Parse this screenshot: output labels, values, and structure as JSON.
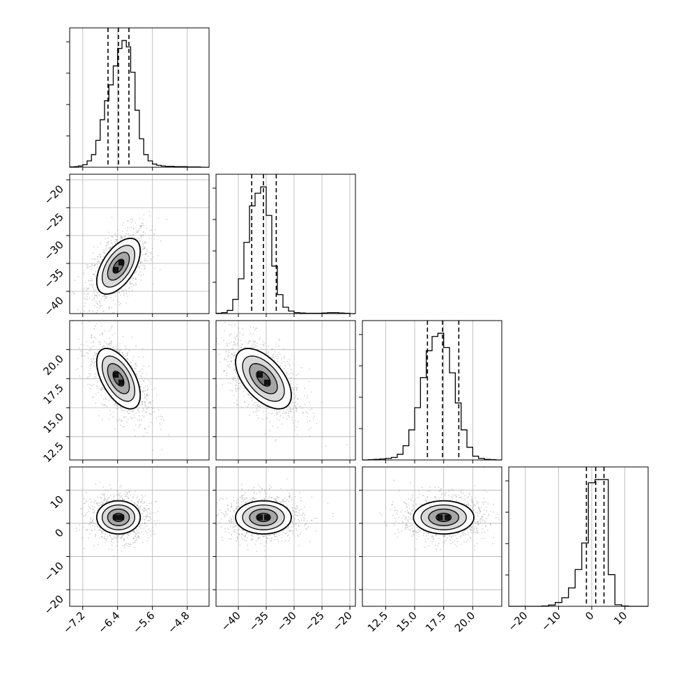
{
  "chart_data": {
    "type": "corner",
    "grid": true,
    "parameters": [
      {
        "range": [
          -7.5,
          -4.3
        ],
        "ticks": [
          "−7.2",
          "−6.4",
          "−5.6",
          "−4.8"
        ],
        "tick_values": [
          -7.2,
          -6.4,
          -5.6,
          -4.8
        ]
      },
      {
        "range": [
          -44,
          -19
        ],
        "ticks": [
          "−40",
          "−35",
          "−30",
          "−25",
          "−20"
        ],
        "tick_values": [
          -40,
          -35,
          -30,
          -25,
          -20
        ]
      },
      {
        "range": [
          10.5,
          22.5
        ],
        "ticks": [
          "12.5",
          "15.0",
          "17.5",
          "20.0"
        ],
        "tick_values": [
          12.5,
          15.0,
          17.5,
          20.0
        ]
      },
      {
        "range": [
          -25,
          17
        ],
        "ticks": [
          "−20",
          "−10",
          "0",
          "10"
        ],
        "tick_values": [
          -20,
          -10,
          0,
          10
        ]
      }
    ],
    "quantiles": [
      [
        -6.62,
        -6.38,
        -6.14
      ],
      [
        -37.6,
        -35.5,
        -33.2
      ],
      [
        16.1,
        17.4,
        18.8
      ],
      [
        -1.6,
        1.2,
        3.7
      ]
    ],
    "histograms": [
      {
        "bin_edges": [
          -7.5,
          -7.4,
          -7.3,
          -7.2,
          -7.1,
          -7.0,
          -6.9,
          -6.8,
          -6.7,
          -6.6,
          -6.5,
          -6.4,
          -6.3,
          -6.2,
          -6.1,
          -6.0,
          -5.9,
          -5.8,
          -5.7,
          -5.6,
          -5.5,
          -5.4,
          -5.3,
          -5.2,
          -5.1,
          -5.0,
          -4.9,
          -4.8,
          -4.7,
          -4.6,
          -4.5,
          -4.4,
          -4.3
        ],
        "counts": [
          1,
          2,
          4,
          8,
          20,
          40,
          85,
          150,
          210,
          260,
          320,
          375,
          400,
          380,
          300,
          180,
          90,
          40,
          20,
          10,
          6,
          4,
          3,
          3,
          2,
          2,
          2,
          1,
          1,
          1,
          0,
          0
        ]
      },
      {
        "bin_edges": [
          -44,
          -43,
          -42,
          -41,
          -40,
          -39,
          -38,
          -37,
          -36,
          -35,
          -34,
          -33,
          -32,
          -31,
          -30,
          -29,
          -28,
          -27,
          -26,
          -25,
          -24,
          -23,
          -22,
          -21,
          -20,
          -19
        ],
        "counts": [
          1,
          3,
          10,
          45,
          110,
          225,
          340,
          380,
          400,
          310,
          150,
          60,
          20,
          8,
          3,
          2,
          1,
          1,
          1,
          2,
          3,
          3,
          2,
          1,
          0
        ]
      },
      {
        "bin_edges": [
          10.5,
          11.0,
          11.5,
          12.0,
          12.5,
          13.0,
          13.5,
          14.0,
          14.5,
          15.0,
          15.5,
          16.0,
          16.5,
          17.0,
          17.5,
          18.0,
          18.5,
          19.0,
          19.5,
          20.0,
          20.5,
          21.0,
          21.5,
          22.0,
          22.5
        ],
        "counts": [
          0,
          1,
          2,
          3,
          5,
          8,
          18,
          45,
          95,
          165,
          260,
          345,
          390,
          400,
          355,
          275,
          180,
          95,
          40,
          12,
          5,
          2,
          1,
          0
        ]
      },
      {
        "bin_edges": [
          -25,
          -23,
          -21,
          -19,
          -17,
          -15,
          -13,
          -11,
          -9,
          -7,
          -5,
          -3,
          -1,
          1,
          3,
          5,
          7,
          9,
          11,
          13,
          15,
          17
        ],
        "counts": [
          0,
          0,
          0,
          0,
          0,
          1,
          4,
          12,
          27,
          58,
          116,
          200,
          390,
          400,
          400,
          100,
          5,
          1,
          0,
          0,
          0
        ]
      }
    ],
    "pairs": [
      {
        "x": 0,
        "y": 1,
        "center": [
          -6.38,
          -35.5
        ],
        "sd": [
          0.25,
          2.5
        ],
        "rho": 0.55
      },
      {
        "x": 0,
        "y": 2,
        "center": [
          -6.38,
          17.5
        ],
        "sd": [
          0.25,
          1.3
        ],
        "rho": -0.55
      },
      {
        "x": 1,
        "y": 2,
        "center": [
          -35.5,
          17.5
        ],
        "sd": [
          2.5,
          1.3
        ],
        "rho": -0.55
      },
      {
        "x": 0,
        "y": 3,
        "center": [
          -6.38,
          1.8
        ],
        "sd": [
          0.25,
          2.5
        ],
        "rho": 0.0
      },
      {
        "x": 1,
        "y": 3,
        "center": [
          -35.5,
          1.8
        ],
        "sd": [
          2.5,
          2.5
        ],
        "rho": 0.0
      },
      {
        "x": 2,
        "y": 3,
        "center": [
          17.5,
          1.8
        ],
        "sd": [
          1.3,
          2.5
        ],
        "rho": 0.0
      }
    ],
    "contour_sigma_levels": [
      0.5,
      1.0,
      1.5,
      2.0
    ]
  }
}
